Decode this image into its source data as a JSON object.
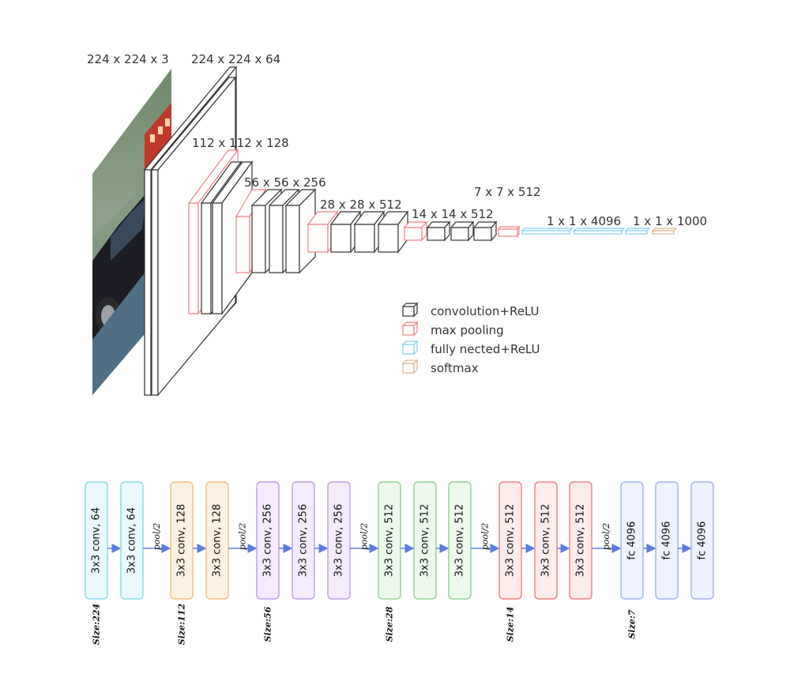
{
  "architecture_3d": {
    "dims": [
      "224 x 224 x 3",
      "224 x 224 x 64",
      "112 x 112 x 128",
      "56 x 56 x 256",
      "28 x 28 x 512",
      "14 x 14 x 512",
      "7 x 7 x 512",
      "1 x 1 x 4096",
      "1 x 1 x 1000"
    ],
    "legend": [
      {
        "label": "convolution+ReLU",
        "color": "#333333"
      },
      {
        "label": "max pooling",
        "color": "#f08080"
      },
      {
        "label": "fully nected+ReLU",
        "color": "#7fcfef"
      },
      {
        "label": "softmax",
        "color": "#d9b48a"
      }
    ]
  },
  "block_diagram": {
    "blocks": [
      {
        "label": "3x3 conv, 64",
        "stroke": "#6fd6e6",
        "fill": "#eaf9fb"
      },
      {
        "label": "3x3 conv, 64",
        "stroke": "#6fd6e6",
        "fill": "#eaf9fb"
      },
      {
        "label": "3x3 conv, 128",
        "stroke": "#f2b567",
        "fill": "#fdf1e2"
      },
      {
        "label": "3x3 conv, 128",
        "stroke": "#f2b567",
        "fill": "#fdf1e2"
      },
      {
        "label": "3x3 conv, 256",
        "stroke": "#b98ae6",
        "fill": "#f4ecfc"
      },
      {
        "label": "3x3 conv, 256",
        "stroke": "#b98ae6",
        "fill": "#f4ecfc"
      },
      {
        "label": "3x3 conv, 256",
        "stroke": "#b98ae6",
        "fill": "#f4ecfc"
      },
      {
        "label": "3x3 conv, 512",
        "stroke": "#7fc97f",
        "fill": "#edf8ed"
      },
      {
        "label": "3x3 conv, 512",
        "stroke": "#7fc97f",
        "fill": "#edf8ed"
      },
      {
        "label": "3x3 conv, 512",
        "stroke": "#7fc97f",
        "fill": "#edf8ed"
      },
      {
        "label": "3x3 conv, 512",
        "stroke": "#ee6b6b",
        "fill": "#fdecec"
      },
      {
        "label": "3x3 conv, 512",
        "stroke": "#ee6b6b",
        "fill": "#fdecec"
      },
      {
        "label": "3x3 conv, 512",
        "stroke": "#ee6b6b",
        "fill": "#fdecec"
      },
      {
        "label": "fc 4096",
        "stroke": "#8fa8ee",
        "fill": "#eef2fc"
      },
      {
        "label": "fc 4096",
        "stroke": "#8fa8ee",
        "fill": "#eef2fc"
      },
      {
        "label": "fc 4096",
        "stroke": "#8fa8ee",
        "fill": "#eef2fc"
      }
    ],
    "pool_label": "pool/2",
    "sizes": [
      "Size:224",
      "Size:112",
      "Size:56",
      "Size:28",
      "Size:14",
      "Size:7"
    ],
    "arrow_color": "#5b7be0"
  }
}
